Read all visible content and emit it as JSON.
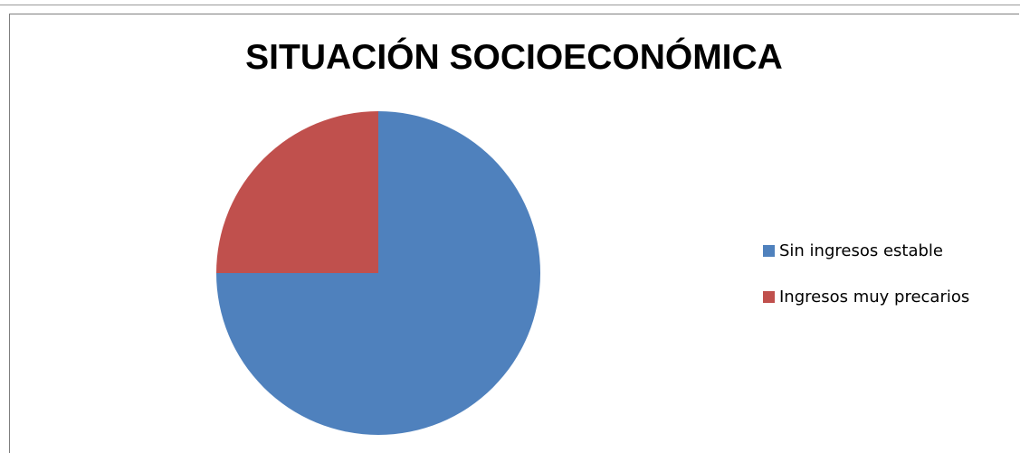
{
  "chart_data": {
    "type": "pie",
    "title": "SITUACIÓN SOCIOECONÓMICA",
    "categories": [
      "Sin ingresos estable",
      "Ingresos muy precarios"
    ],
    "values": [
      75,
      25
    ],
    "colors": [
      "#4f81bd",
      "#c0504d"
    ],
    "legend_position": "right",
    "start_angle_deg": 0,
    "direction": "clockwise"
  }
}
